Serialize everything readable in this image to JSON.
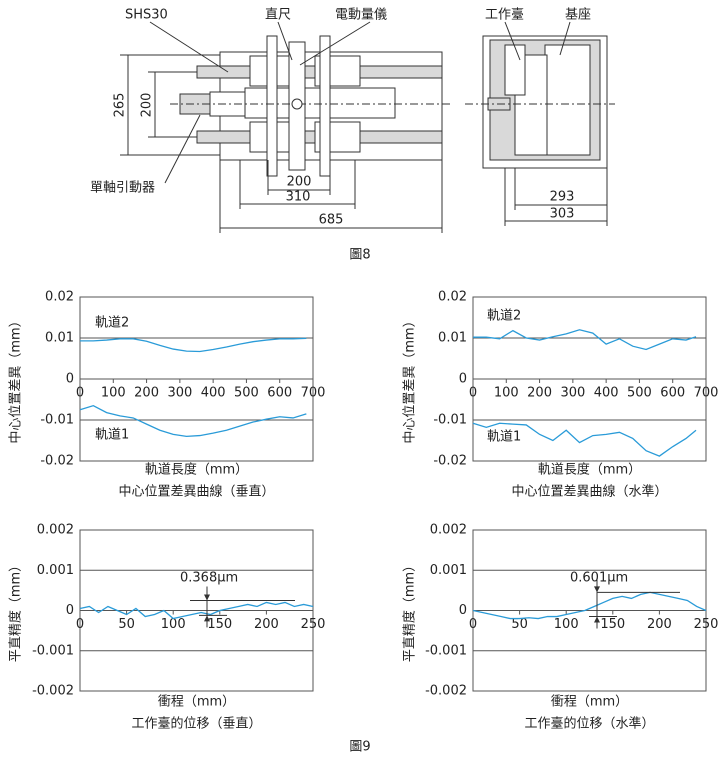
{
  "figure8": {
    "labels": {
      "rail": "SHS30",
      "ruler": "直尺",
      "gauge": "電動量儀",
      "actuator": "單軸引動器",
      "table": "工作臺",
      "base": "基座"
    },
    "dimensions": [
      "265",
      "200",
      "200",
      "310",
      "685",
      "293",
      "303"
    ],
    "caption": "圖8"
  },
  "chart_data": [
    {
      "type": "line",
      "title": "中心位置差異曲線（垂直）",
      "xlabel": "軌道長度（mm）",
      "ylabel": "中心位置差異（mm）",
      "x": [
        0,
        40,
        80,
        120,
        160,
        200,
        240,
        280,
        320,
        360,
        400,
        440,
        480,
        520,
        560,
        600,
        640,
        680
      ],
      "series": [
        {
          "name": "軌道2",
          "color": "#2a9bd8",
          "values": [
            0.0093,
            0.0093,
            0.0095,
            0.0098,
            0.0098,
            0.0092,
            0.0082,
            0.0073,
            0.0068,
            0.0067,
            0.0072,
            0.0078,
            0.0085,
            0.0091,
            0.0095,
            0.0098,
            0.0098,
            0.0099
          ]
        },
        {
          "name": "軌道1",
          "color": "#2a9bd8",
          "values": [
            -0.0075,
            -0.0065,
            -0.0082,
            -0.009,
            -0.0095,
            -0.011,
            -0.0125,
            -0.0135,
            -0.014,
            -0.0138,
            -0.0132,
            -0.0125,
            -0.0115,
            -0.0105,
            -0.0098,
            -0.0092,
            -0.0095,
            -0.0085
          ]
        }
      ],
      "xlim": [
        0,
        700
      ],
      "xticks": [
        0,
        100,
        200,
        300,
        400,
        500,
        600,
        700
      ],
      "ylim": [
        -0.02,
        0.02
      ],
      "yticks": [
        0.02,
        0.01,
        0,
        -0.01,
        -0.02
      ],
      "grid": true
    },
    {
      "type": "line",
      "title": "中心位置差異曲線（水準）",
      "xlabel": "軌道長度（mm）",
      "ylabel": "中心位置差異（mm）",
      "x": [
        0,
        40,
        80,
        120,
        160,
        200,
        240,
        280,
        320,
        360,
        400,
        440,
        480,
        520,
        560,
        600,
        640,
        670
      ],
      "series": [
        {
          "name": "軌道2",
          "color": "#2a9bd8",
          "values": [
            0.0102,
            0.0102,
            0.0098,
            0.0118,
            0.01,
            0.0095,
            0.0103,
            0.011,
            0.012,
            0.0112,
            0.0085,
            0.0098,
            0.008,
            0.0072,
            0.0085,
            0.0098,
            0.0095,
            0.0103
          ]
        },
        {
          "name": "軌道1",
          "color": "#2a9bd8",
          "values": [
            -0.0108,
            -0.0118,
            -0.0108,
            -0.011,
            -0.0112,
            -0.0135,
            -0.015,
            -0.0125,
            -0.0155,
            -0.0138,
            -0.0135,
            -0.013,
            -0.0145,
            -0.0175,
            -0.0188,
            -0.0165,
            -0.0145,
            -0.0125
          ]
        }
      ],
      "xlim": [
        0,
        700
      ],
      "xticks": [
        0,
        100,
        200,
        300,
        400,
        500,
        600,
        700
      ],
      "ylim": [
        -0.02,
        0.02
      ],
      "yticks": [
        0.02,
        0.01,
        0,
        -0.01,
        -0.02
      ],
      "grid": true
    },
    {
      "type": "line",
      "title": "工作臺的位移（垂直）",
      "xlabel": "衝程（mm）",
      "ylabel": "平直精度（mm）",
      "annotation": "0.368μm",
      "x": [
        0,
        10,
        20,
        30,
        40,
        50,
        60,
        70,
        80,
        90,
        100,
        110,
        120,
        130,
        140,
        150,
        160,
        170,
        180,
        190,
        200,
        210,
        220,
        230,
        240,
        250
      ],
      "series": [
        {
          "color": "#2a9bd8",
          "values": [
            5e-05,
            0.0001,
            -5e-05,
            0.0001,
            0,
            -0.0001,
            5e-05,
            -0.00015,
            -0.0001,
            0,
            -0.0002,
            -0.00015,
            -0.0001,
            -5e-05,
            -0.0001,
            0,
            5e-05,
            0.0001,
            0.00015,
            0.0001,
            0.0002,
            0.00015,
            0.0002,
            0.0001,
            0.00015,
            0.0001
          ]
        }
      ],
      "xlim": [
        0,
        250
      ],
      "xticks": [
        0,
        50,
        100,
        150,
        200,
        250
      ],
      "ylim": [
        -0.002,
        0.002
      ],
      "yticks": [
        0.002,
        0.001,
        0,
        -0.001,
        -0.002
      ],
      "grid": true
    },
    {
      "type": "line",
      "title": "工作臺的位移（水準）",
      "xlabel": "衝程（mm）",
      "ylabel": "平直精度（mm）",
      "annotation": "0.601μm",
      "x": [
        0,
        10,
        20,
        30,
        40,
        50,
        60,
        70,
        80,
        90,
        100,
        110,
        120,
        130,
        140,
        150,
        160,
        170,
        180,
        190,
        200,
        210,
        220,
        230,
        240,
        250
      ],
      "series": [
        {
          "color": "#2a9bd8",
          "values": [
            0,
            -5e-05,
            -0.0001,
            -0.00015,
            -0.0002,
            -0.0002,
            -0.00018,
            -0.0002,
            -0.00015,
            -0.00015,
            -0.0001,
            -5e-05,
            0,
            0.0001,
            0.0002,
            0.0003,
            0.00035,
            0.0003,
            0.0004,
            0.00045,
            0.0004,
            0.00035,
            0.0003,
            0.00025,
            0.0001,
            0
          ]
        }
      ],
      "xlim": [
        0,
        250
      ],
      "xticks": [
        0,
        50,
        100,
        150,
        200,
        250
      ],
      "ylim": [
        -0.002,
        0.002
      ],
      "yticks": [
        0.002,
        0.001,
        0,
        -0.001,
        -0.002
      ],
      "grid": true
    }
  ],
  "figure9": {
    "caption": "圖9"
  }
}
